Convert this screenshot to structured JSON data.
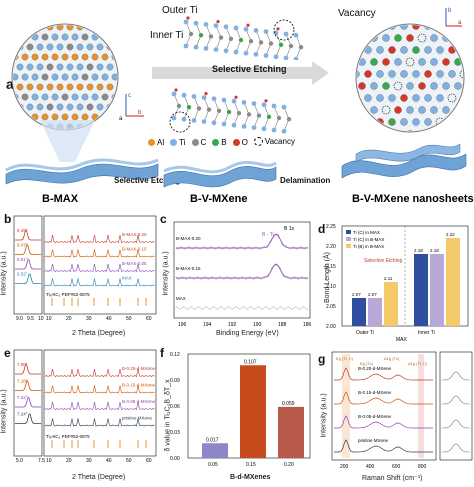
{
  "panel_a": {
    "letter": "a",
    "top_labels": {
      "outer_ti": "Outer Ti",
      "inner_ti": "Inner Ti",
      "vacancy": "Vacancy"
    },
    "arrow_label": "Selective Etching",
    "legend": [
      {
        "sym": "Al",
        "color": "#e8912b"
      },
      {
        "sym": "Ti",
        "color": "#7fb0e0"
      },
      {
        "sym": "C",
        "color": "#8a8a8a"
      },
      {
        "sym": "B",
        "color": "#3aa84a"
      },
      {
        "sym": "O",
        "color": "#d8362a"
      },
      {
        "sym": "Vacancy",
        "color": "#000000"
      }
    ],
    "bottom_labels": {
      "selective": "Selective Etching",
      "delamination": "Delamination"
    },
    "captions": {
      "bmax": "B-MAX",
      "bvmxene": "B-V-MXene",
      "nanosheets": "B-V-MXene nanosheets"
    }
  },
  "panel_b": {
    "letter": "b",
    "ylabel": "Intensity (a.u.)",
    "xlabel": "2 Theta (Degree)",
    "left_ticks": [
      "9.0",
      "9.5",
      "10"
    ],
    "right_ticks": [
      "10",
      "20",
      "30",
      "40",
      "50",
      "60"
    ],
    "peaks": [
      "9.45°",
      "9.47°",
      "9.51°",
      "9.52°"
    ],
    "series": [
      "B-MAX-0.20",
      "B-MAX-0.15",
      "B-MAX-0.05",
      "MAX"
    ],
    "reference": "Ti₃AlC₂ PDF#52-0875"
  },
  "panel_c": {
    "letter": "c",
    "title": "B 1s",
    "peak_label": "B - Ti",
    "series": [
      "B-MAX-0.20",
      "B-MAX-0.15",
      "MAX"
    ],
    "xlabel": "Binding Energy (eV)",
    "ylabel": "Intensity (a.u.)",
    "ticks": [
      "196",
      "194",
      "192",
      "190",
      "188",
      "186"
    ]
  },
  "panel_d": {
    "letter": "d",
    "ylabel": "Bond Length (Å)",
    "legend": [
      "Ti (C) in MAX",
      "Ti (C) in B-MAX",
      "Ti (B) in B-MAX"
    ],
    "annotation": "Selective Etching",
    "group_axis": "MAX",
    "groups": [
      "Outer Ti",
      "Inner Ti"
    ],
    "yticks": [
      "2.00",
      "2.05",
      "2.10",
      "2.15",
      "2.20",
      "2.25"
    ],
    "chart_data": {
      "type": "bar",
      "categories": [
        "Outer Ti",
        "Inner Ti"
      ],
      "series": [
        {
          "name": "Ti (C) in MAX",
          "values": [
            2.07,
            2.18
          ],
          "color": "#2f4ea0"
        },
        {
          "name": "Ti (C) in B-MAX",
          "values": [
            2.07,
            2.18
          ],
          "color": "#b8a8d8"
        },
        {
          "name": "Ti (B) in B-MAX",
          "values": [
            2.11,
            2.22
          ],
          "color": "#f3c96a"
        }
      ],
      "labels": [
        [
          "2.07",
          "2.18"
        ],
        [
          "2.07",
          "2.18"
        ],
        [
          "2.11",
          "2.22"
        ]
      ],
      "ylim": [
        2.0,
        2.25
      ]
    }
  },
  "panel_e": {
    "letter": "e",
    "ylabel": "Intensity (a.u.)",
    "xlabel": "2 Theta (Degree)",
    "left_ticks": [
      "5.0",
      "7.5"
    ],
    "right_ticks": [
      "10",
      "20",
      "30",
      "40",
      "50",
      "60"
    ],
    "peaks": [
      "7.00°",
      "7.18°",
      "7.22°",
      "7.24°"
    ],
    "series": [
      "B-0.20-d-MXene",
      "B-0.15-d-MXene",
      "B-0.05-d-MXene",
      "pristine MXene"
    ],
    "reference": "Ti₃AlC₂ PDF#52-0875"
  },
  "panel_f": {
    "letter": "f",
    "ylabel": "δ value in Ti₃C₂B_δT_x",
    "xlabel": "B-d-MXenes",
    "yticks": [
      "0.00",
      "0.03",
      "0.06",
      "0.09",
      "0.12"
    ],
    "chart_data": {
      "type": "bar",
      "categories": [
        "0.05",
        "0.15",
        "0.20"
      ],
      "values": [
        0.017,
        0.107,
        0.059
      ],
      "value_labels": [
        "0.017",
        "0.107",
        "0.059"
      ],
      "colors": [
        "#8d86c8",
        "#c84b1e",
        "#b85a4a"
      ],
      "ylim": [
        0,
        0.12
      ]
    }
  },
  "panel_g": {
    "letter": "g",
    "ylabel": "Intensity (a.u.)",
    "xlabel": "Raman Shift (cm⁻¹)",
    "ticks": [
      "200",
      "400",
      "600",
      "800"
    ],
    "series": [
      "B-0.20-d-MXene",
      "B-0.15-d-MXene",
      "B-0.05-d-MXene",
      "pristine MXene"
    ],
    "modes": [
      "Eg (Ti, C)",
      "Eg (Tx)",
      "A1g (Tx)",
      "A1g (Ti, C)"
    ]
  }
}
